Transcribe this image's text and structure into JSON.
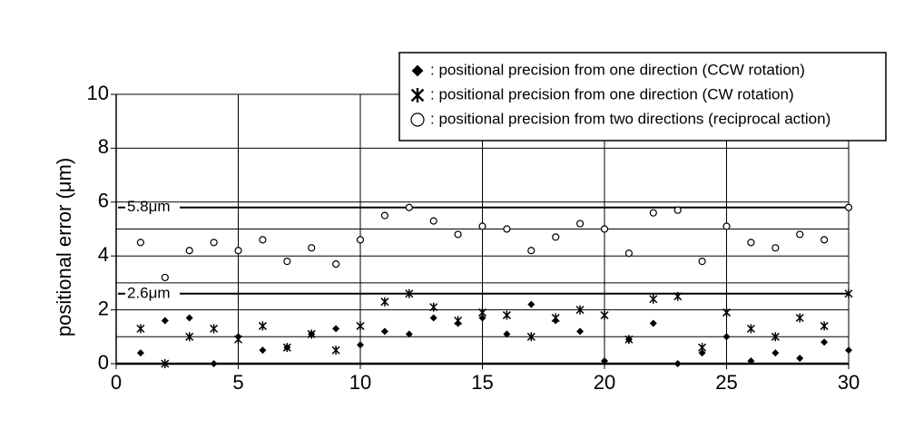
{
  "chart_data": {
    "type": "scatter",
    "y_label": "positional error (μm)",
    "x": [
      1,
      2,
      3,
      4,
      5,
      6,
      7,
      8,
      9,
      10,
      11,
      12,
      13,
      14,
      15,
      16,
      17,
      18,
      19,
      20,
      21,
      22,
      23,
      24,
      25,
      26,
      27,
      28,
      29,
      30
    ],
    "series": [
      {
        "name": ": positional precision from one direction (CCW rotation)",
        "color": "#000000",
        "marker": "diamond",
        "values": [
          0.4,
          1.6,
          1.7,
          0,
          1.0,
          0.5,
          0.6,
          1.1,
          1.3,
          0.7,
          1.2,
          1.1,
          1.7,
          1.5,
          1.7,
          1.1,
          2.2,
          1.6,
          1.2,
          0.1,
          0.9,
          1.5,
          0,
          0.4,
          1.0,
          0.1,
          0.4,
          0.2,
          0.8,
          0.5
        ]
      },
      {
        "name": ": positional precision from one direction (CW rotation)",
        "color": "#000000",
        "marker": "asterisk",
        "values": [
          1.3,
          0,
          1.0,
          1.3,
          0.9,
          1.4,
          0.6,
          1.1,
          0.5,
          1.4,
          2.3,
          2.6,
          2.1,
          1.6,
          1.9,
          1.8,
          1.0,
          1.7,
          2.0,
          1.8,
          0.9,
          2.4,
          2.5,
          0.6,
          1.9,
          1.3,
          1.0,
          1.7,
          1.4,
          2.6
        ]
      },
      {
        "name": ": positional precision from two directions (reciprocal action)",
        "color": "#000000",
        "marker": "circle",
        "values": [
          4.5,
          3.2,
          4.2,
          4.5,
          4.2,
          4.6,
          3.8,
          4.3,
          3.7,
          4.6,
          5.5,
          5.8,
          5.3,
          4.8,
          5.1,
          5.0,
          4.2,
          4.7,
          5.2,
          5.0,
          4.1,
          5.6,
          5.7,
          3.8,
          5.1,
          4.5,
          4.3,
          4.8,
          4.6,
          5.8
        ]
      }
    ],
    "xlim": [
      0,
      30
    ],
    "xticks": [
      0,
      5,
      10,
      15,
      20,
      25,
      30
    ],
    "ylim": [
      0,
      10
    ],
    "yticks": [
      0,
      2,
      4,
      6,
      8,
      10
    ],
    "ygrid": [
      1,
      2,
      3,
      4,
      5,
      6,
      8,
      10
    ],
    "reference_lines": [
      {
        "value": 5.8,
        "label": "5.8μm"
      },
      {
        "value": 2.6,
        "label": "2.6μm"
      }
    ],
    "legend": "top-right",
    "grid": true
  }
}
